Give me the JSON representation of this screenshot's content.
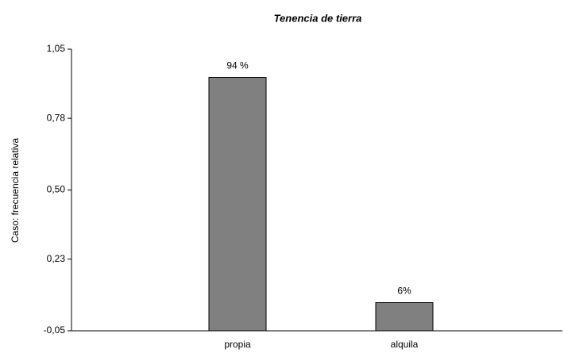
{
  "chart_data": {
    "type": "bar",
    "title": "Tenencia de tierra",
    "y_label": "Caso: frecuencia relativa",
    "categories": [
      "propia",
      "alquila"
    ],
    "values": [
      0.94,
      0.06
    ],
    "value_labels": [
      "94 %",
      "6%"
    ],
    "color": "#808080",
    "ylim": [
      -0.05,
      1.05
    ],
    "yticks": [
      {
        "value": -0.05,
        "label": "-0,05"
      },
      {
        "value": 0.23,
        "label": "0,23"
      },
      {
        "value": 0.5,
        "label": "0,50"
      },
      {
        "value": 0.78,
        "label": "0,78"
      },
      {
        "value": 1.05,
        "label": "1,05"
      }
    ],
    "grid": false
  }
}
